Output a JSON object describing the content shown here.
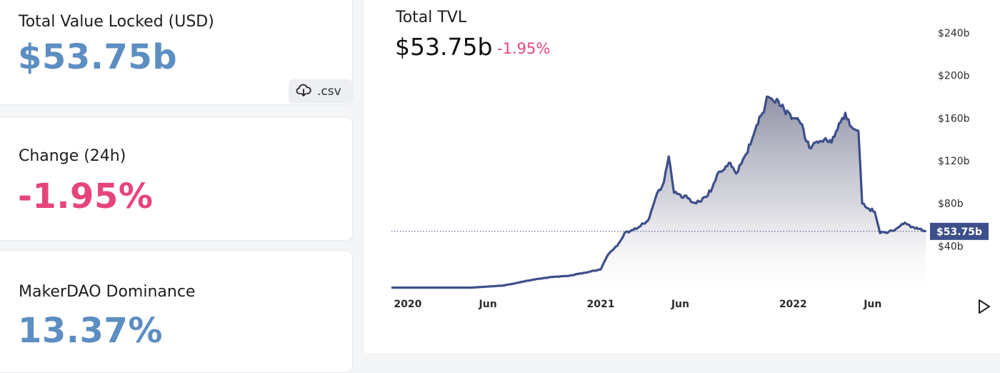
{
  "cards": {
    "tvl": {
      "label": "Total Value Locked (USD)",
      "value": "$53.75b",
      "csv_label": ".csv"
    },
    "change": {
      "label": "Change (24h)",
      "value": "-1.95%"
    },
    "dominance": {
      "label": "MakerDAO Dominance",
      "value": "13.37%"
    }
  },
  "chart_header": {
    "title": "Total TVL",
    "value": "$53.75b",
    "change": "-1.95%"
  },
  "icons": {
    "csv": "download-icon",
    "play": "play-icon"
  },
  "colors": {
    "line": "#3d4f8a",
    "accent_blue": "#5c8ec2",
    "negative": "#e6457c"
  },
  "chart_data": {
    "type": "area",
    "title": "",
    "xlabel": "",
    "ylabel": "",
    "yaxis_side": "right",
    "ylim": [
      0,
      240
    ],
    "ytick_values": [
      40,
      80,
      120,
      160,
      200,
      240
    ],
    "ytick_labels": [
      "$40b",
      "$80b",
      "$120b",
      "$160b",
      "$200b",
      "$240b"
    ],
    "xlim": [
      "2019-12-01",
      "2022-09-15"
    ],
    "xtick_labels": [
      {
        "date": "2020-01-01",
        "label": "2020"
      },
      {
        "date": "2020-06-01",
        "label": "Jun"
      },
      {
        "date": "2021-01-01",
        "label": "2021"
      },
      {
        "date": "2021-06-01",
        "label": "Jun"
      },
      {
        "date": "2022-01-01",
        "label": "2022"
      },
      {
        "date": "2022-06-01",
        "label": "Jun"
      }
    ],
    "current_value_label": "$53.75b",
    "current_value": 53.75,
    "series": [
      {
        "x": [
          "2019-12-01",
          "2020-01-01",
          "2020-03-01",
          "2020-05-01",
          "2020-06-01",
          "2020-07-01",
          "2020-08-01",
          "2020-09-01",
          "2020-10-01",
          "2020-11-01",
          "2020-12-01",
          "2021-01-01",
          "2021-01-15",
          "2021-02-01",
          "2021-02-15",
          "2021-03-01",
          "2021-03-15",
          "2021-04-01",
          "2021-04-15",
          "2021-05-01",
          "2021-05-10",
          "2021-05-20",
          "2021-06-01",
          "2021-06-15",
          "2021-07-01",
          "2021-07-20",
          "2021-08-01",
          "2021-08-15",
          "2021-09-01",
          "2021-09-15",
          "2021-10-01",
          "2021-10-15",
          "2021-11-01",
          "2021-11-15",
          "2021-12-01",
          "2021-12-15",
          "2022-01-01",
          "2022-01-15",
          "2022-02-01",
          "2022-02-15",
          "2022-03-01",
          "2022-03-15",
          "2022-04-01",
          "2022-04-10",
          "2022-04-25",
          "2022-05-05",
          "2022-05-12",
          "2022-05-25",
          "2022-06-05",
          "2022-06-15",
          "2022-07-01",
          "2022-07-15",
          "2022-08-01",
          "2022-08-15",
          "2022-09-01",
          "2022-09-10"
        ],
        "values": [
          1,
          1,
          1,
          1,
          2,
          3,
          6,
          9,
          11,
          12,
          15,
          18,
          32,
          40,
          52,
          55,
          58,
          64,
          85,
          100,
          124,
          90,
          88,
          85,
          80,
          86,
          95,
          110,
          118,
          108,
          124,
          140,
          162,
          180,
          178,
          168,
          160,
          155,
          132,
          138,
          140,
          137,
          156,
          165,
          150,
          148,
          80,
          75,
          72,
          52,
          53,
          56,
          62,
          58,
          56,
          53.75
        ]
      }
    ]
  }
}
